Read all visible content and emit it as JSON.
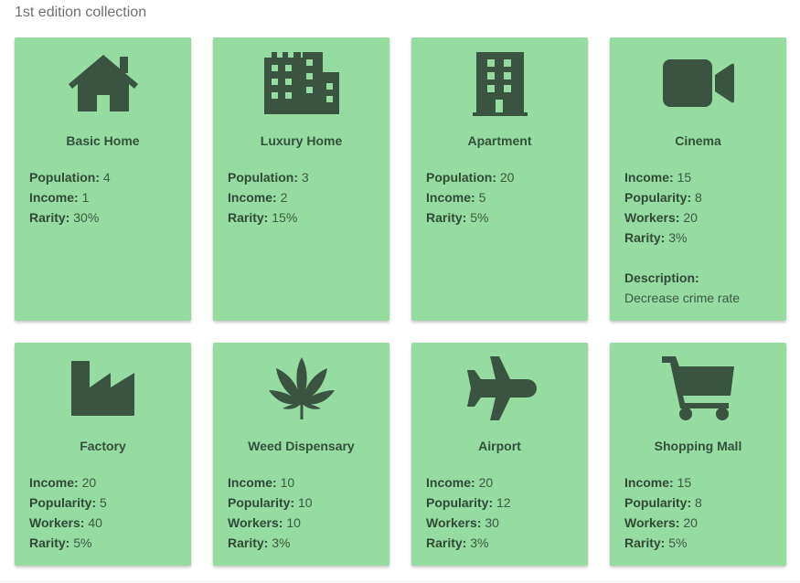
{
  "page": {
    "heading": "1st edition collection"
  },
  "colors": {
    "card_bg": "#96dba0",
    "icon": "#3a5442",
    "text": "#3c5a44"
  },
  "cards": [
    {
      "name": "Basic Home",
      "icon": "house-icon",
      "stats": [
        {
          "label": "Population:",
          "value": "4"
        },
        {
          "label": "Income:",
          "value": "1"
        },
        {
          "label": "Rarity:",
          "value": "30%"
        }
      ]
    },
    {
      "name": "Luxury Home",
      "icon": "city-buildings-icon",
      "stats": [
        {
          "label": "Population:",
          "value": "3"
        },
        {
          "label": "Income:",
          "value": "2"
        },
        {
          "label": "Rarity:",
          "value": "15%"
        }
      ]
    },
    {
      "name": "Apartment",
      "icon": "apartment-building-icon",
      "stats": [
        {
          "label": "Population:",
          "value": "20"
        },
        {
          "label": "Income:",
          "value": "5"
        },
        {
          "label": "Rarity:",
          "value": "5%"
        }
      ]
    },
    {
      "name": "Cinema",
      "icon": "video-camera-icon",
      "stats": [
        {
          "label": "Income:",
          "value": "15"
        },
        {
          "label": "Popularity:",
          "value": "8"
        },
        {
          "label": "Workers:",
          "value": "20"
        },
        {
          "label": "Rarity:",
          "value": "3%"
        }
      ],
      "description_label": "Description:",
      "description": "Decrease crime rate"
    },
    {
      "name": "Factory",
      "icon": "factory-icon",
      "stats": [
        {
          "label": "Income:",
          "value": "20"
        },
        {
          "label": "Popularity:",
          "value": "5"
        },
        {
          "label": "Workers:",
          "value": "40"
        },
        {
          "label": "Rarity:",
          "value": "5%"
        }
      ]
    },
    {
      "name": "Weed Dispensary",
      "icon": "cannabis-leaf-icon",
      "stats": [
        {
          "label": "Income:",
          "value": "10"
        },
        {
          "label": "Popularity:",
          "value": "10"
        },
        {
          "label": "Workers:",
          "value": "10"
        },
        {
          "label": "Rarity:",
          "value": "3%"
        }
      ]
    },
    {
      "name": "Airport",
      "icon": "airplane-icon",
      "stats": [
        {
          "label": "Income:",
          "value": "20"
        },
        {
          "label": "Popularity:",
          "value": "12"
        },
        {
          "label": "Workers:",
          "value": "30"
        },
        {
          "label": "Rarity:",
          "value": "3%"
        }
      ]
    },
    {
      "name": "Shopping Mall",
      "icon": "shopping-cart-icon",
      "stats": [
        {
          "label": "Income:",
          "value": "15"
        },
        {
          "label": "Popularity:",
          "value": "8"
        },
        {
          "label": "Workers:",
          "value": "20"
        },
        {
          "label": "Rarity:",
          "value": "5%"
        }
      ]
    }
  ]
}
